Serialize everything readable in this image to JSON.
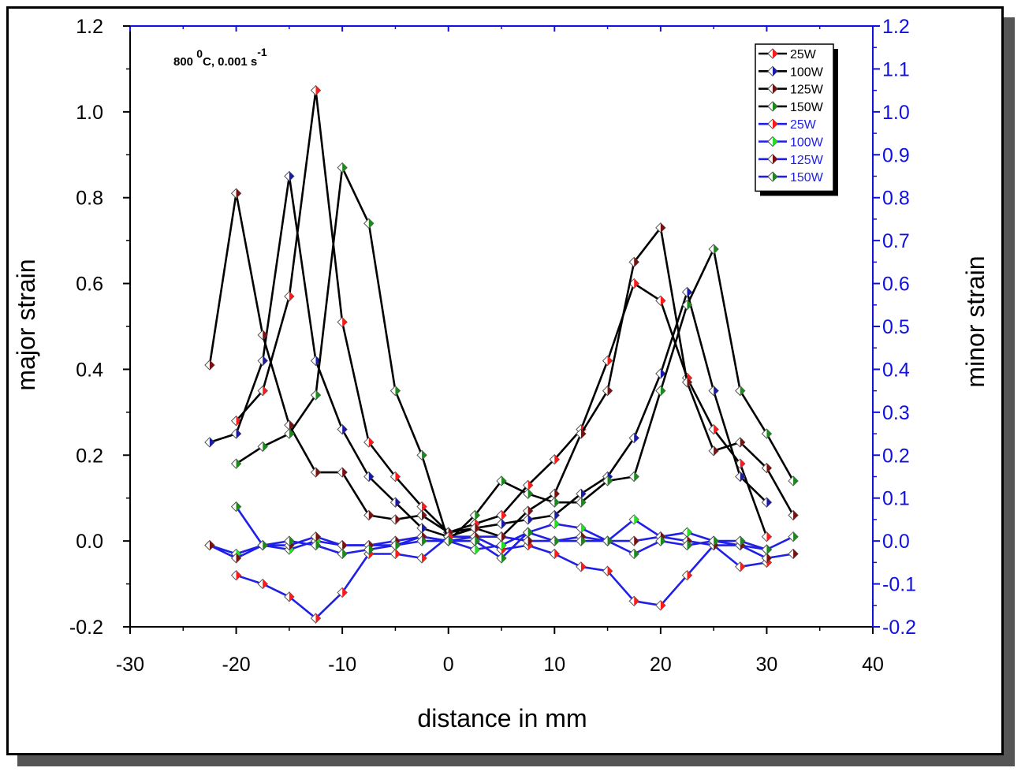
{
  "chart_data": {
    "type": "line",
    "annotation": {
      "main": "800 ",
      "sup1": "0",
      "mid": "C, 0.001 s",
      "sup2": "-1"
    },
    "xlabel": "distance in mm",
    "ylabel_left": "major strain",
    "ylabel_right": "minor strain",
    "xlim": [
      -30,
      40
    ],
    "ylim_left": [
      -0.2,
      1.2
    ],
    "ylim_right": [
      -0.2,
      1.2
    ],
    "x_ticks": [
      "-30",
      "-20",
      "-10",
      "0",
      "10",
      "20",
      "30",
      "40"
    ],
    "y_ticks_left": [
      "-0.2",
      "0.0",
      "0.2",
      "0.4",
      "0.6",
      "0.8",
      "1.0",
      "1.2"
    ],
    "y_ticks_right": [
      "-0.2",
      "-0.1",
      "0.0",
      "0.1",
      "0.2",
      "0.3",
      "0.4",
      "0.5",
      "0.6",
      "0.7",
      "0.8",
      "0.9",
      "1.0",
      "1.1",
      "1.2"
    ],
    "legend_position": "top-right",
    "colors": {
      "axis_left": "#000000",
      "axis_right": "#1010e0",
      "major_line": "#000000",
      "minor_line": "#1f1fe6"
    },
    "series": [
      {
        "name": "25W",
        "group": "major",
        "line_color": "#000000",
        "marker_color": "#ff1a1a",
        "x": [
          0,
          2.5,
          5,
          7.5,
          10,
          12.5,
          15,
          17.5,
          20,
          22.5,
          25,
          27.5,
          30
        ],
        "y": [
          0.02,
          0.04,
          0.06,
          0.13,
          0.19,
          0.26,
          0.42,
          0.6,
          0.56,
          0.38,
          0.26,
          0.18,
          0.01
        ]
      },
      {
        "name": "25W",
        "group": "major-left",
        "line_color": "#000000",
        "marker_color": "#ff1a1a",
        "x": [
          -20,
          -17.5,
          -15,
          -12.5,
          -10,
          -7.5,
          -5,
          -2.5,
          0
        ],
        "y": [
          0.28,
          0.35,
          0.57,
          1.05,
          0.51,
          0.23,
          0.15,
          0.08,
          0.02
        ]
      },
      {
        "name": "100W",
        "group": "major",
        "line_color": "#000000",
        "marker_color": "#1a1aa8",
        "x": [
          -22.5,
          -20,
          -17.5,
          -15,
          -12.5,
          -10,
          -7.5,
          -5,
          -2.5,
          0,
          2.5,
          5,
          7.5,
          10,
          12.5,
          15,
          17.5,
          20,
          22.5,
          25,
          27.5,
          30
        ],
        "y": [
          0.23,
          0.25,
          0.42,
          0.85,
          0.42,
          0.26,
          0.15,
          0.09,
          0.03,
          0.01,
          0.03,
          0.04,
          0.05,
          0.06,
          0.11,
          0.15,
          0.24,
          0.39,
          0.58,
          0.35,
          0.15,
          0.09
        ]
      },
      {
        "name": "125W",
        "group": "major",
        "line_color": "#000000",
        "marker_color": "#7a1010",
        "x": [
          -22.5,
          -20,
          -17.5,
          -15,
          -12.5,
          -10,
          -7.5,
          -5,
          -2.5,
          0,
          2.5,
          5,
          7.5,
          10,
          12.5,
          15,
          17.5,
          20,
          22.5,
          25,
          27.5,
          30,
          32.5
        ],
        "y": [
          0.41,
          0.81,
          0.48,
          0.27,
          0.16,
          0.16,
          0.06,
          0.05,
          0.06,
          0.02,
          0.03,
          0.01,
          0.07,
          0.11,
          0.25,
          0.35,
          0.65,
          0.73,
          0.37,
          0.21,
          0.23,
          0.17,
          0.06
        ]
      },
      {
        "name": "150W",
        "group": "major",
        "line_color": "#000000",
        "marker_color": "#1a8a1a",
        "x": [
          -20,
          -17.5,
          -15,
          -12.5,
          -10,
          -7.5,
          -5,
          -2.5,
          0,
          2.5,
          5,
          7.5,
          10,
          12.5,
          15,
          17.5,
          20,
          22.5,
          25,
          27.5,
          30,
          32.5
        ],
        "y": [
          0.18,
          0.22,
          0.25,
          0.34,
          0.87,
          0.74,
          0.35,
          0.2,
          0.0,
          0.06,
          0.14,
          0.11,
          0.09,
          0.09,
          0.14,
          0.15,
          0.35,
          0.55,
          0.68,
          0.35,
          0.25,
          0.14
        ]
      },
      {
        "name": "25W",
        "group": "minor",
        "line_color": "#1f1fe6",
        "marker_color": "#ff1a1a",
        "x": [
          -20,
          -17.5,
          -15,
          -12.5,
          -10,
          -7.5,
          -5,
          -2.5,
          0,
          2.5,
          5,
          7.5,
          10,
          12.5,
          15,
          17.5,
          20,
          22.5,
          25,
          27.5,
          30
        ],
        "y": [
          -0.08,
          -0.1,
          -0.13,
          -0.18,
          -0.12,
          -0.03,
          -0.03,
          -0.04,
          0.01,
          0.01,
          -0.02,
          -0.01,
          -0.03,
          -0.06,
          -0.07,
          -0.14,
          -0.15,
          -0.08,
          -0.01,
          -0.06,
          -0.05
        ]
      },
      {
        "name": "100W",
        "group": "minor",
        "line_color": "#1f1fe6",
        "marker_color": "#22e022",
        "x": [
          -22.5,
          -20,
          -17.5,
          -15,
          -12.5,
          -10,
          -7.5,
          -5,
          -2.5,
          0,
          2.5,
          5,
          7.5,
          10,
          12.5,
          15,
          17.5,
          20,
          22.5,
          25,
          27.5,
          30
        ],
        "y": [
          -0.01,
          -0.03,
          -0.01,
          -0.02,
          0.0,
          -0.01,
          -0.01,
          -0.01,
          0.01,
          0.0,
          -0.02,
          -0.01,
          0.02,
          0.04,
          0.03,
          0.0,
          0.05,
          0.01,
          0.02,
          0.0,
          -0.01,
          -0.02
        ]
      },
      {
        "name": "125W",
        "group": "minor",
        "line_color": "#1f1fe6",
        "marker_color": "#7a1010",
        "x": [
          -22.5,
          -20,
          -17.5,
          -15,
          -12.5,
          -10,
          -7.5,
          -5,
          -2.5,
          0,
          2.5,
          5,
          7.5,
          10,
          12.5,
          15,
          17.5,
          20,
          22.5,
          25,
          27.5,
          30,
          32.5
        ],
        "y": [
          -0.01,
          -0.04,
          -0.01,
          -0.01,
          0.01,
          -0.01,
          -0.01,
          0.0,
          0.01,
          0.0,
          0.01,
          0.01,
          0.0,
          0.0,
          0.01,
          0.0,
          0.0,
          0.01,
          0.0,
          -0.01,
          -0.01,
          -0.04,
          -0.03
        ]
      },
      {
        "name": "150W",
        "group": "minor",
        "line_color": "#1f1fe6",
        "marker_color": "#1a8a1a",
        "x": [
          -20,
          -17.5,
          -15,
          -12.5,
          -10,
          -7.5,
          -5,
          -2.5,
          0,
          2.5,
          5,
          7.5,
          10,
          12.5,
          15,
          17.5,
          20,
          22.5,
          25,
          27.5,
          30,
          32.5
        ],
        "y": [
          0.08,
          -0.01,
          0.0,
          -0.01,
          -0.03,
          -0.02,
          -0.01,
          0.0,
          0.0,
          0.0,
          -0.04,
          0.02,
          0.0,
          0.0,
          0.0,
          -0.03,
          0.0,
          -0.01,
          0.0,
          0.0,
          -0.02,
          0.01
        ]
      }
    ],
    "legend": [
      {
        "label": "25W",
        "line_color": "#000000",
        "marker_color": "#ff1a1a",
        "text_color": "#000000"
      },
      {
        "label": "100W",
        "line_color": "#000000",
        "marker_color": "#1a1aa8",
        "text_color": "#000000"
      },
      {
        "label": "125W",
        "line_color": "#000000",
        "marker_color": "#7a1010",
        "text_color": "#000000"
      },
      {
        "label": "150W",
        "line_color": "#000000",
        "marker_color": "#1a8a1a",
        "text_color": "#000000"
      },
      {
        "label": "25W",
        "line_color": "#1f1fe6",
        "marker_color": "#ff1a1a",
        "text_color": "#1f1fe6"
      },
      {
        "label": "100W",
        "line_color": "#1f1fe6",
        "marker_color": "#22e022",
        "text_color": "#1f1fe6"
      },
      {
        "label": "125W",
        "line_color": "#1f1fe6",
        "marker_color": "#7a1010",
        "text_color": "#1f1fe6"
      },
      {
        "label": "150W",
        "line_color": "#1f1fe6",
        "marker_color": "#1a8a1a",
        "text_color": "#1f1fe6"
      }
    ]
  }
}
